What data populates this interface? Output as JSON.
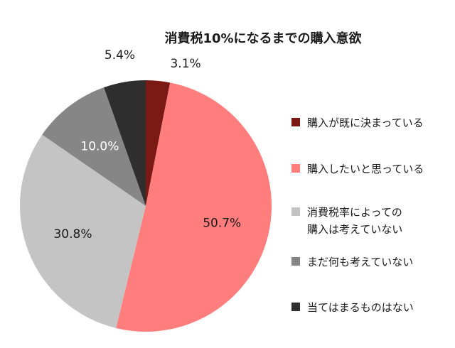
{
  "chart_data": {
    "type": "pie",
    "title": "消費税10%になるまでの購入意欲",
    "legend_position": "right",
    "start_angle_deg": 0,
    "direction": "clockwise",
    "slices": [
      {
        "label": "購入が既に決まっている",
        "value": 3.1,
        "display": "3.1%",
        "color": "#7b1a14"
      },
      {
        "label": "購入したいと思っている",
        "value": 50.7,
        "display": "50.7%",
        "color": "#ff7d7d"
      },
      {
        "label": "消費税率によっての購入は考えていない",
        "value": 30.8,
        "display": "30.8%",
        "color": "#c4c4c4"
      },
      {
        "label": "まだ何も考えていない",
        "value": 10.0,
        "display": "10.0%",
        "color": "#868686"
      },
      {
        "label": "当てはまるものはない",
        "value": 5.4,
        "display": "5.4%",
        "color": "#2e2e2e"
      }
    ]
  }
}
